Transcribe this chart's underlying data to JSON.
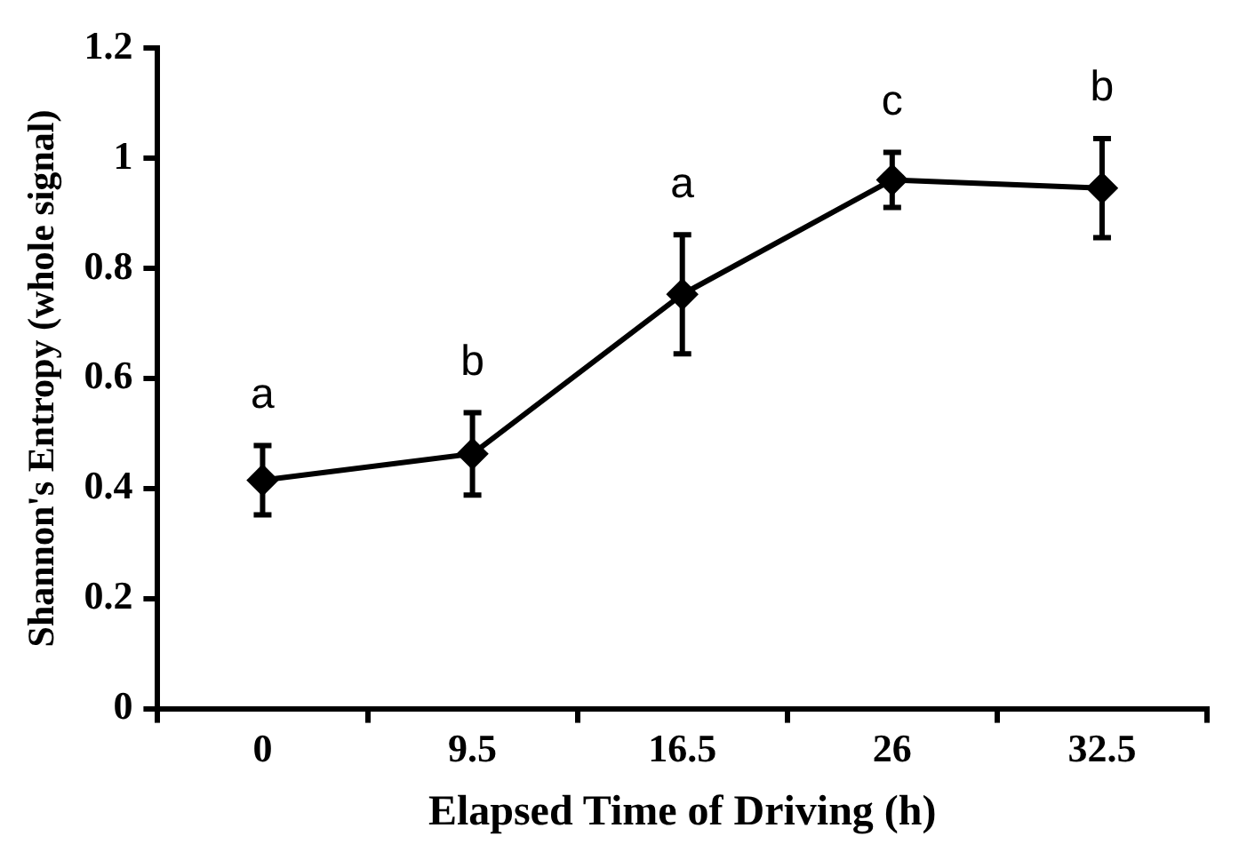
{
  "chart_data": {
    "type": "line",
    "xlabel": "Elapsed Time of Driving (h)",
    "ylabel": "Shannon's Entropy (whole signal)",
    "categories": [
      "0",
      "9.5",
      "16.5",
      "26",
      "32.5"
    ],
    "series": [
      {
        "color": "#000000",
        "values": [
          0.415,
          0.463,
          0.753,
          0.961,
          0.946
        ],
        "errors": [
          0.063,
          0.075,
          0.108,
          0.05,
          0.09
        ]
      }
    ],
    "ylim": [
      0,
      1.2
    ],
    "yticks": [
      0,
      0.2,
      0.4,
      0.6,
      0.8,
      1,
      1.2
    ],
    "marker": "diamond",
    "line_style": "solid",
    "grid": false,
    "legend": false,
    "annotations": [
      {
        "text": "a",
        "x": "0",
        "y": 0.415
      },
      {
        "text": "b",
        "x": "9.5",
        "y": 0.463
      },
      {
        "text": "a",
        "x": "16.5",
        "y": 0.753
      },
      {
        "text": "c",
        "x": "26",
        "y": 0.961
      },
      {
        "text": "b",
        "x": "32.5",
        "y": 0.946
      }
    ]
  }
}
